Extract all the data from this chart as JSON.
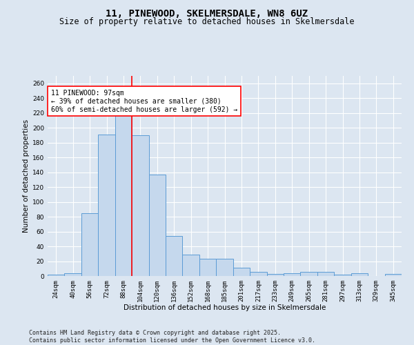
{
  "title_line1": "11, PINEWOOD, SKELMERSDALE, WN8 6UZ",
  "title_line2": "Size of property relative to detached houses in Skelmersdale",
  "xlabel": "Distribution of detached houses by size in Skelmersdale",
  "ylabel": "Number of detached properties",
  "categories": [
    "24sqm",
    "40sqm",
    "56sqm",
    "72sqm",
    "88sqm",
    "104sqm",
    "120sqm",
    "136sqm",
    "152sqm",
    "168sqm",
    "185sqm",
    "201sqm",
    "217sqm",
    "233sqm",
    "249sqm",
    "265sqm",
    "281sqm",
    "297sqm",
    "313sqm",
    "329sqm",
    "345sqm"
  ],
  "values": [
    2,
    4,
    85,
    191,
    218,
    190,
    137,
    54,
    29,
    23,
    23,
    11,
    6,
    3,
    4,
    6,
    6,
    2,
    4,
    0,
    3
  ],
  "bar_color": "#c5d8ed",
  "bar_edge_color": "#5b9bd5",
  "vline_x": 4.5,
  "vline_color": "red",
  "annotation_text": "11 PINEWOOD: 97sqm\n← 39% of detached houses are smaller (380)\n60% of semi-detached houses are larger (592) →",
  "background_color": "#dce6f1",
  "plot_bg_color": "#dce6f1",
  "ylim": [
    0,
    270
  ],
  "yticks": [
    0,
    20,
    40,
    60,
    80,
    100,
    120,
    140,
    160,
    180,
    200,
    220,
    240,
    260
  ],
  "footer_text": "Contains HM Land Registry data © Crown copyright and database right 2025.\nContains public sector information licensed under the Open Government Licence v3.0.",
  "title_fontsize": 10,
  "subtitle_fontsize": 8.5,
  "axis_label_fontsize": 7.5,
  "tick_fontsize": 6.5,
  "annotation_fontsize": 7,
  "footer_fontsize": 6
}
